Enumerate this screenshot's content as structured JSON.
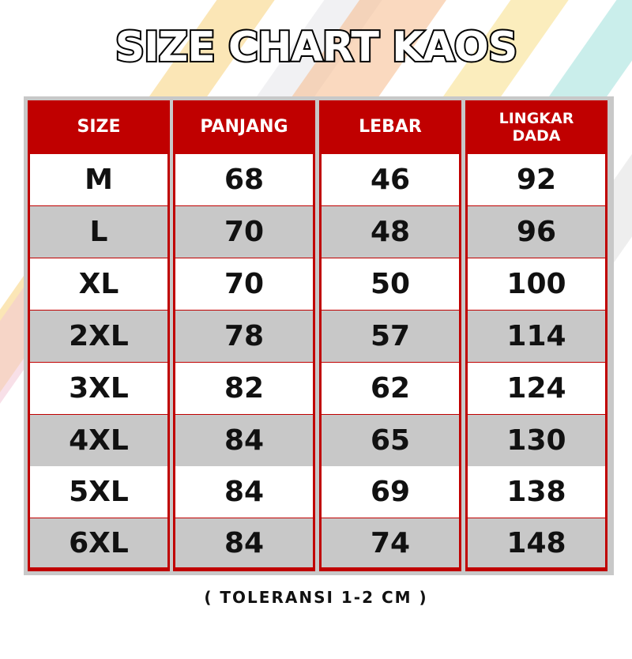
{
  "title": "SIZE CHART KAOS",
  "colors": {
    "header": "#c00000",
    "stripe_rows": "#c8c8c8",
    "border": "#c8c8c8"
  },
  "chart_data": {
    "type": "table",
    "columns": [
      "SIZE",
      "PANJANG",
      "LEBAR",
      "LINGKAR DADA"
    ],
    "rows": [
      [
        "M",
        "68",
        "46",
        "92"
      ],
      [
        "L",
        "70",
        "48",
        "96"
      ],
      [
        "XL",
        "70",
        "50",
        "100"
      ],
      [
        "2XL",
        "78",
        "57",
        "114"
      ],
      [
        "3XL",
        "82",
        "62",
        "124"
      ],
      [
        "4XL",
        "84",
        "65",
        "130"
      ],
      [
        "5XL",
        "84",
        "69",
        "138"
      ],
      [
        "6XL",
        "84",
        "74",
        "148"
      ]
    ]
  },
  "note": "( TOLERANSI 1-2 CM )"
}
